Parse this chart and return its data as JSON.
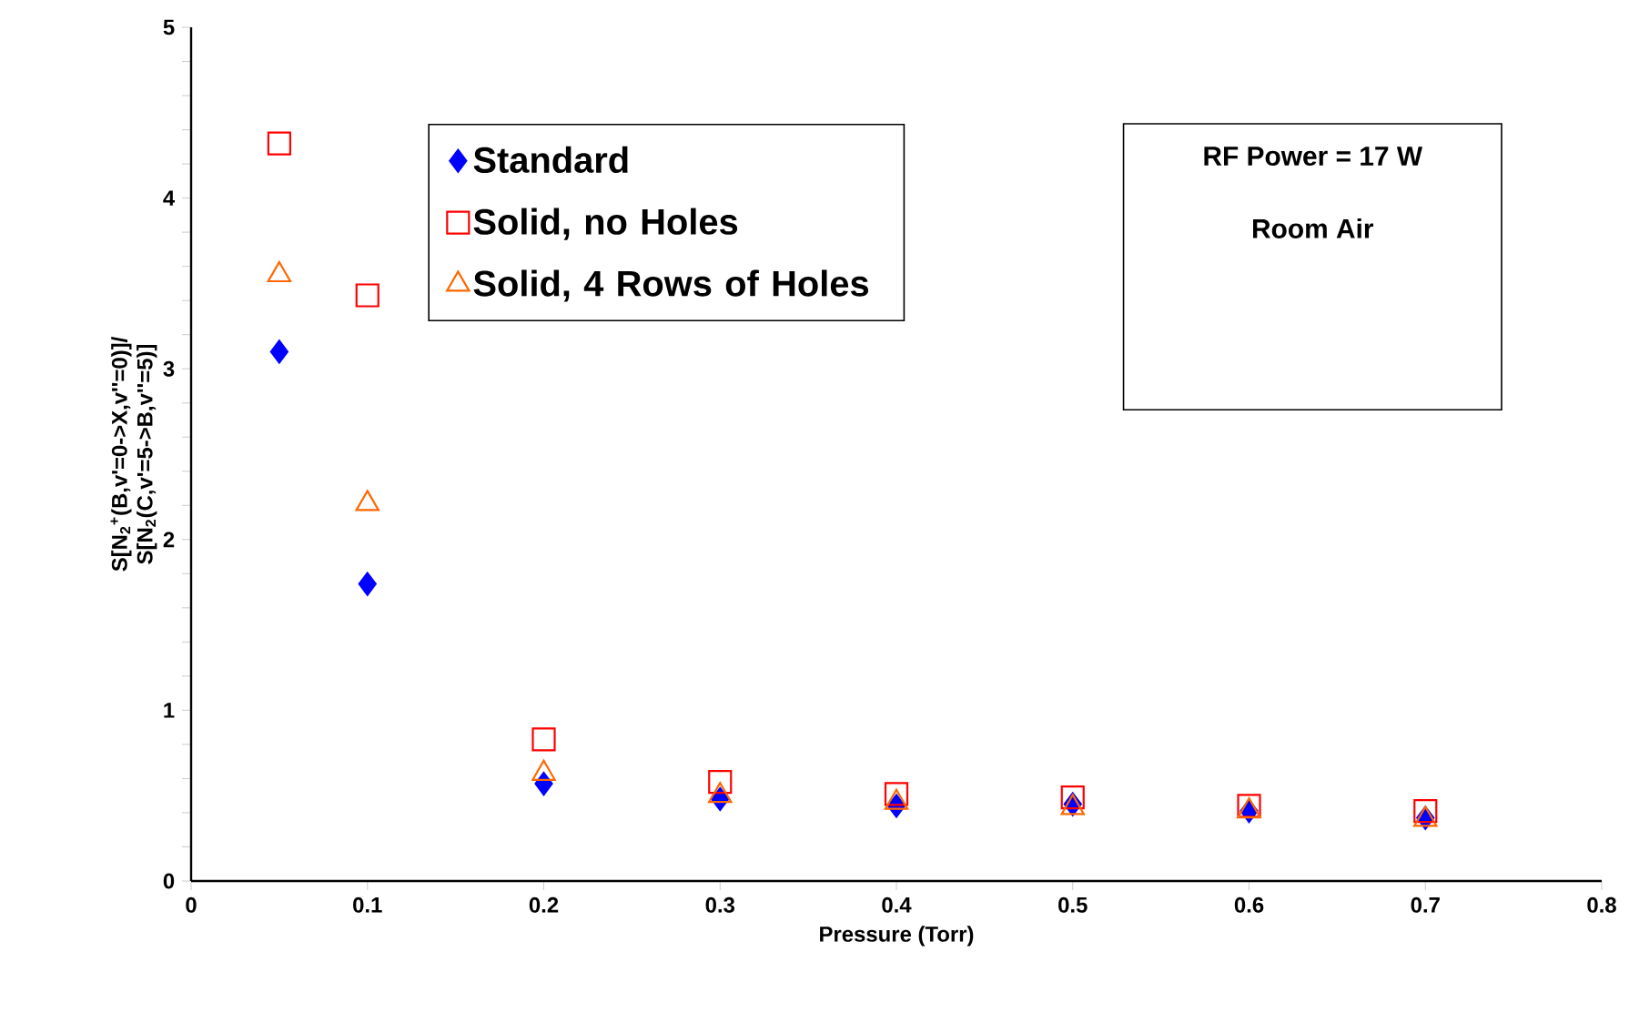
{
  "chart_data": {
    "type": "scatter",
    "xlabel": "Pressure (Torr)",
    "ylabel": "S[N$_{2}$$^{+}$(B,v'=0->X,v''=0)]/ S[N$_{2}$(C,v'=5->B,v''=5)]",
    "x": [
      0.05,
      0.1,
      0.2,
      0.3,
      0.4,
      0.5,
      0.6,
      0.7
    ],
    "series": [
      {
        "name": "Standard",
        "color": "#0000ff",
        "marker": "diamond",
        "values": [
          3.1,
          1.74,
          0.57,
          0.48,
          0.44,
          0.45,
          0.41,
          0.37
        ]
      },
      {
        "name": "Solid, no Holes",
        "color": "#ff0000",
        "marker": "square",
        "values": [
          4.32,
          3.43,
          0.83,
          0.58,
          0.51,
          0.49,
          0.44,
          0.41
        ]
      },
      {
        "name": "Solid, 4 Rows of Holes",
        "color": "#ff6600",
        "marker": "triangle",
        "values": [
          3.55,
          2.21,
          0.63,
          0.5,
          0.46,
          0.43,
          0.41,
          0.36
        ]
      }
    ],
    "xlim": [
      0,
      0.8
    ],
    "xticks": [
      0,
      0.1,
      0.2,
      0.3,
      0.4,
      0.5,
      0.6,
      0.7,
      0.8
    ],
    "ylim": [
      0,
      5
    ],
    "yticks": [
      0,
      1,
      2,
      3,
      4,
      5
    ],
    "legend": "top",
    "grid": false,
    "annotations": [
      "RF Power = 17 W",
      "Room Air"
    ]
  }
}
